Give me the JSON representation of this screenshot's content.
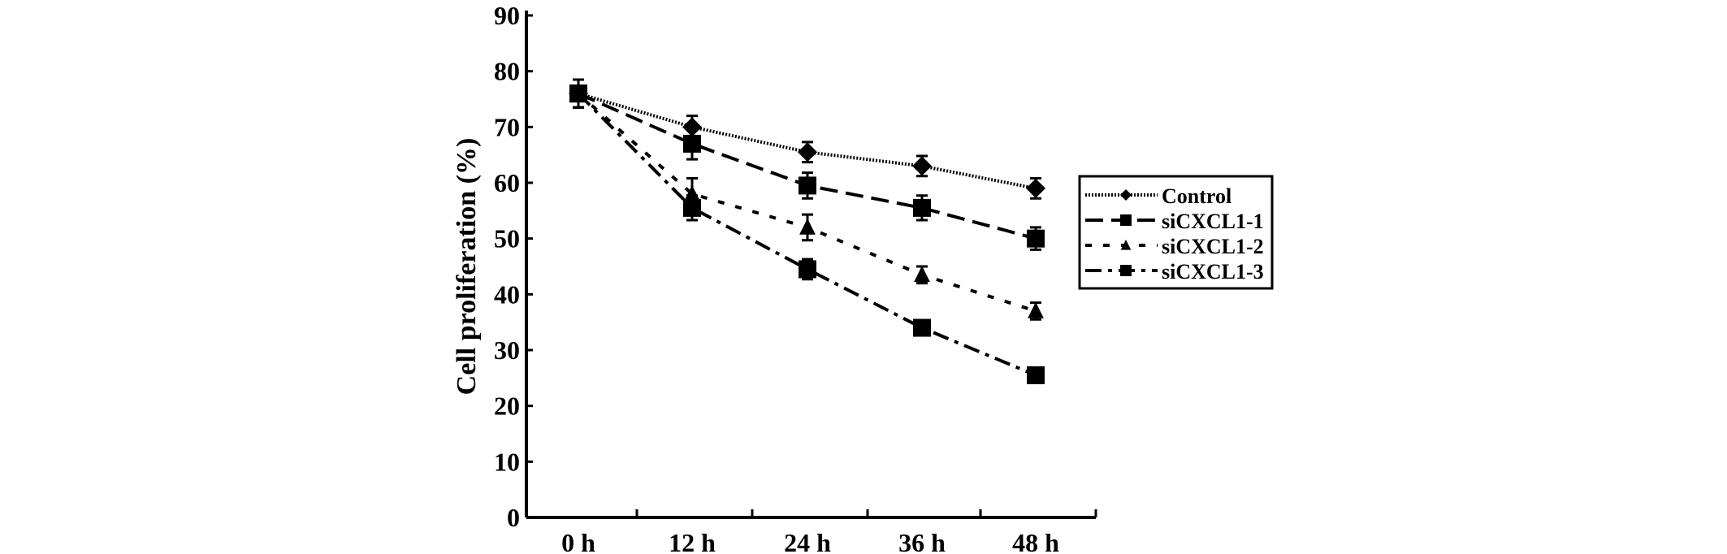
{
  "chart_data": {
    "type": "line",
    "title": "",
    "xlabel": "",
    "ylabel": "Cell proliferation (%)",
    "categories": [
      "0 h",
      "12 h",
      "24 h",
      "36 h",
      "48 h"
    ],
    "ylim": [
      0,
      90
    ],
    "yticks": [
      "0",
      "10",
      "20",
      "30",
      "40",
      "50",
      "60",
      "70",
      "80",
      "90"
    ],
    "grid": false,
    "legend_position": "right",
    "series": [
      {
        "name": "Control",
        "marker": "diamond",
        "dash": "wavy",
        "values": [
          76,
          70,
          65.5,
          63,
          59
        ],
        "errors": [
          2.5,
          2,
          1.8,
          1.8,
          1.8
        ]
      },
      {
        "name": "siCXCL1-1",
        "marker": "square",
        "dash": "long",
        "values": [
          76,
          67,
          59.5,
          55.5,
          50
        ],
        "errors": [
          2.5,
          2.8,
          2.3,
          2.2,
          2
        ]
      },
      {
        "name": "siCXCL1-2",
        "marker": "triangle",
        "dash": "short",
        "values": [
          76,
          58,
          52,
          43.5,
          37
        ],
        "errors": [
          2.5,
          2.8,
          2.3,
          1.5,
          1.5
        ]
      },
      {
        "name": "siCXCL1-3",
        "marker": "square",
        "dash": "dashdot",
        "values": [
          76,
          55.5,
          44.5,
          34,
          25.5
        ],
        "errors": [
          2.5,
          2.2,
          1.8,
          1,
          1
        ]
      }
    ]
  }
}
